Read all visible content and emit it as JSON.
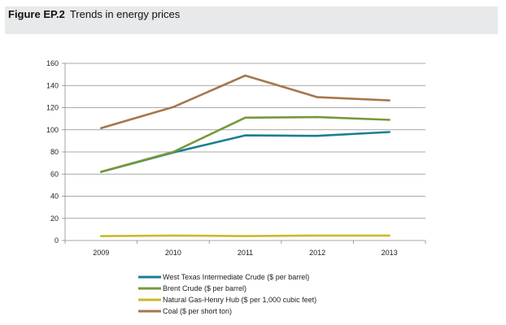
{
  "figure": {
    "number": "Figure EP.2",
    "title": "Trends in energy prices"
  },
  "chart_data": {
    "type": "line",
    "title": "Trends in energy prices",
    "xlabel": "",
    "ylabel": "",
    "categories": [
      "2009",
      "2010",
      "2011",
      "2012",
      "2013"
    ],
    "ylim": [
      0,
      160
    ],
    "yticks": [
      0,
      20,
      40,
      60,
      80,
      100,
      120,
      140,
      160
    ],
    "grid": true,
    "legend_position": "bottom",
    "series": [
      {
        "name": "West Texas Intermediate Crude ($ per barrel)",
        "color": "#1a7f93",
        "values": [
          62,
          79.5,
          95,
          94.5,
          98
        ]
      },
      {
        "name": "Brent Crude ($ per barrel)",
        "color": "#77983b",
        "values": [
          62,
          80,
          111,
          111.5,
          109
        ]
      },
      {
        "name": "Natural Gas-Henry Hub ($ per 1,000 cubic feet)",
        "color": "#c9ba2b",
        "values": [
          4,
          4.5,
          4,
          4.5,
          4.5
        ]
      },
      {
        "name": "Coal ($ per short ton)",
        "color": "#a6774b",
        "values": [
          101.5,
          120.5,
          149,
          129.5,
          126.5
        ]
      }
    ]
  }
}
